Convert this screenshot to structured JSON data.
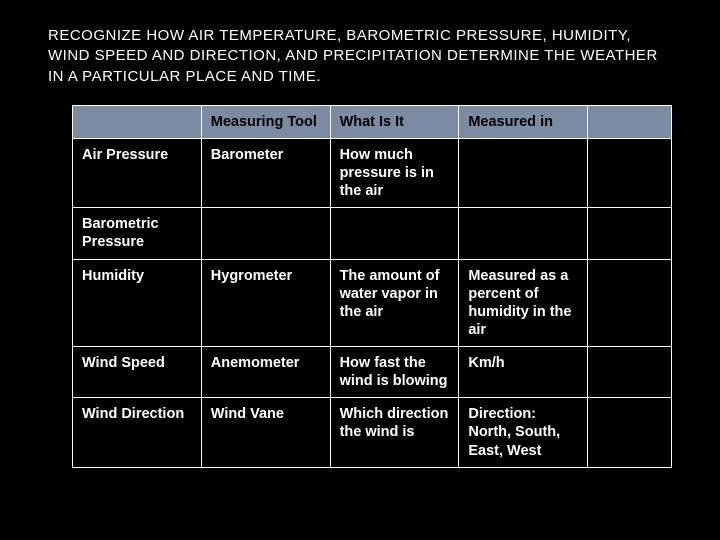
{
  "title": "RECOGNIZE HOW AIR TEMPERATURE, BAROMETRIC PRESSURE, HUMIDITY, WIND SPEED AND DIRECTION, AND PRECIPITATION DETERMINE THE WEATHER IN A PARTICULAR PLACE AND TIME.",
  "colors": {
    "page_bg": "#000000",
    "header_bg": "#7c8ba1",
    "header_text": "#000000",
    "cell_bg": "#000000",
    "cell_text": "#ffffff",
    "border": "#ffffff"
  },
  "table": {
    "headers": [
      "",
      "Measuring Tool",
      "What Is It",
      "Measured in",
      ""
    ],
    "rows": [
      {
        "cells": [
          "Air Pressure",
          "Barometer",
          "How much pressure is in the air",
          "",
          ""
        ]
      },
      {
        "cells": [
          "Barometric Pressure",
          "",
          "",
          "",
          ""
        ]
      },
      {
        "cells": [
          "Humidity",
          "Hygrometer",
          "The amount of water vapor in the air",
          "Measured as a percent of humidity in the air",
          ""
        ]
      },
      {
        "cells": [
          "Wind Speed",
          "Anemometer",
          "How fast the wind is blowing",
          "Km/h",
          ""
        ]
      },
      {
        "cells": [
          "Wind Direction",
          "Wind Vane",
          "Which direction the wind is",
          "Direction: North, South, East, West",
          ""
        ]
      }
    ]
  }
}
